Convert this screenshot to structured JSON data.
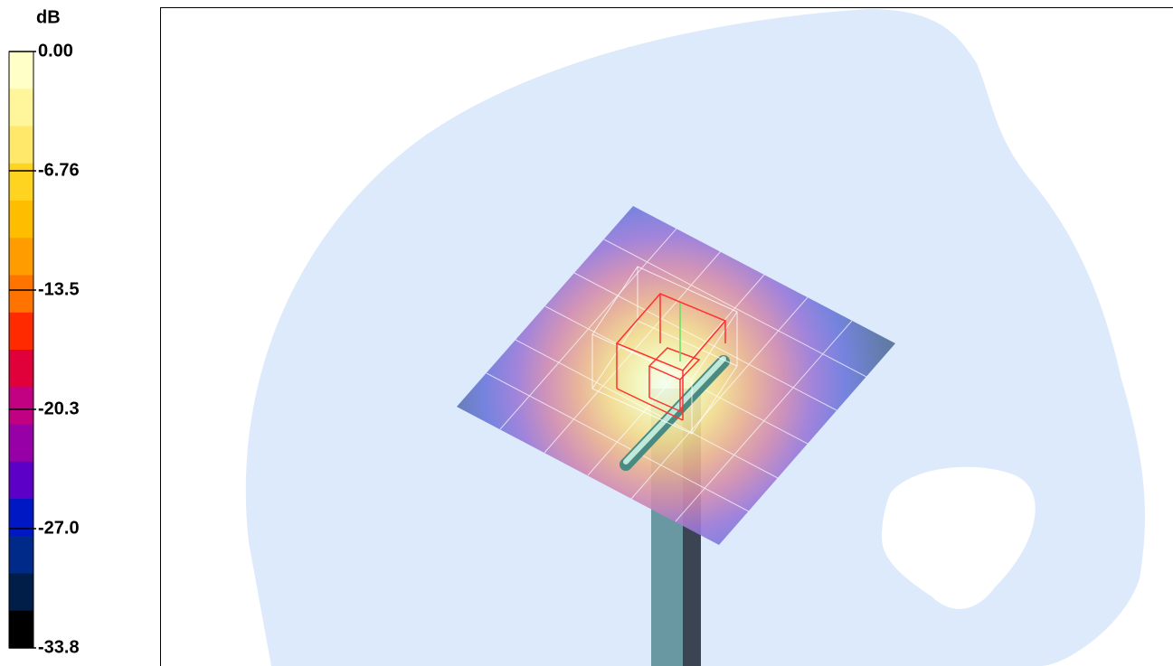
{
  "colorbar": {
    "unit": "dB",
    "labels": [
      "0.00",
      "-6.76",
      "-13.5",
      "-20.3",
      "-27.0",
      "-33.8"
    ]
  }
}
